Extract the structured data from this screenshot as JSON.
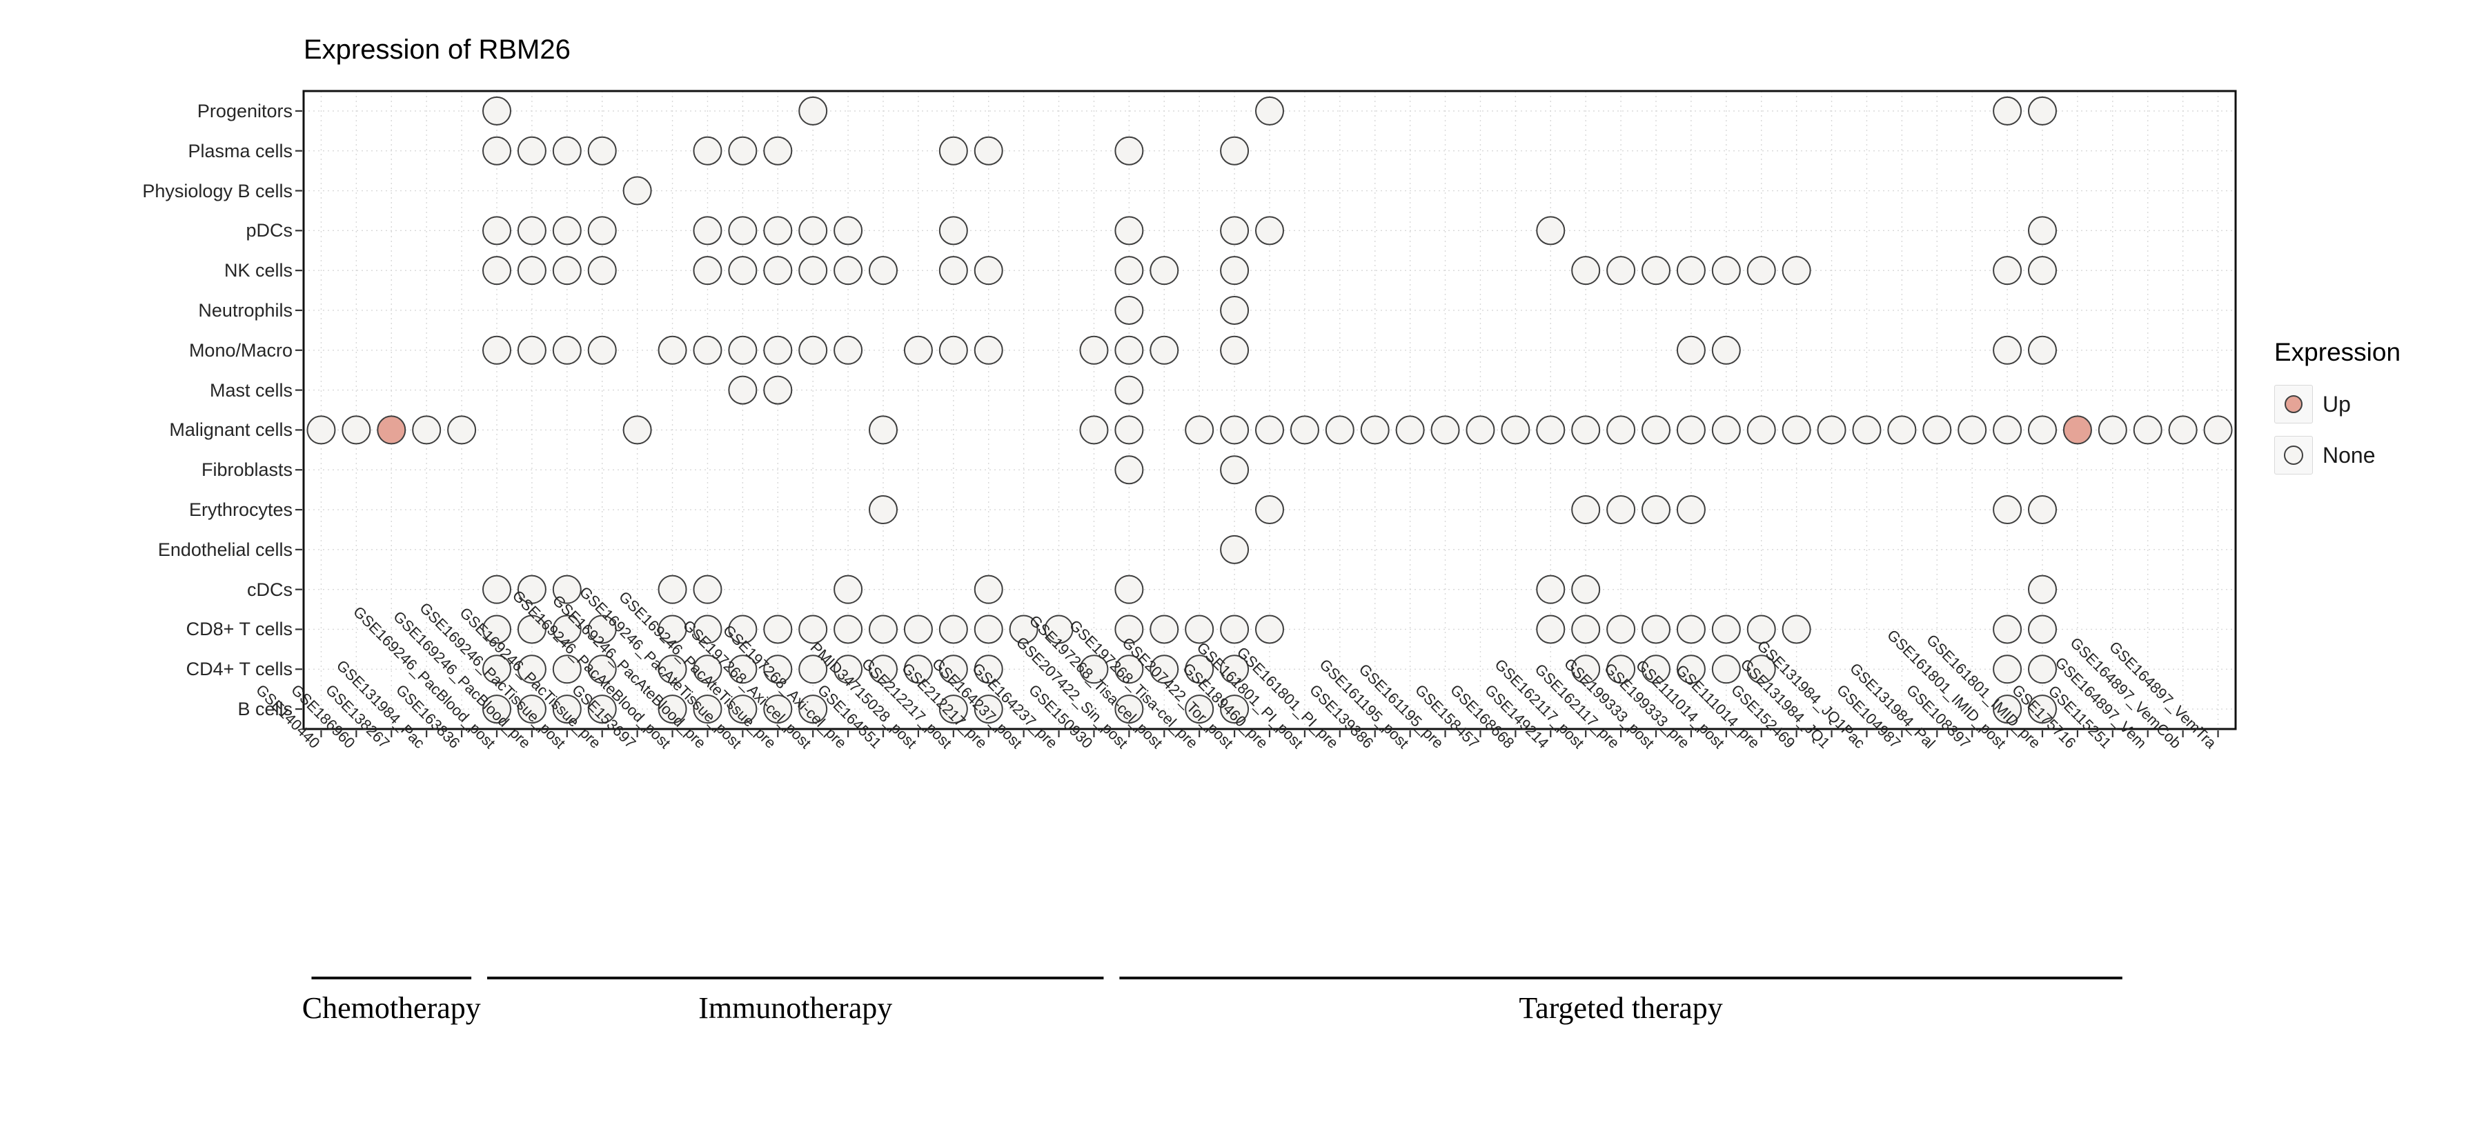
{
  "title": "Expression of RBM26",
  "legend": {
    "title": "Expression",
    "items": [
      {
        "label": "Up",
        "color": "#e5a497"
      },
      {
        "label": "None",
        "color": "#f5f4f2"
      }
    ]
  },
  "chart_data": {
    "type": "heatmap",
    "subtype": "dot-matrix",
    "title": "Expression of RBM26",
    "legend_title": "Expression",
    "legend_position": "right",
    "legend_values": [
      "Up",
      "None"
    ],
    "x_label_rotation": 45,
    "grid": "dotted",
    "dot_colors": {
      "up": "#e5a497",
      "none": "#f5f4f2"
    },
    "rows": [
      "Progenitors",
      "Plasma cells",
      "Physiology B cells",
      "pDCs",
      "NK cells",
      "Neutrophils",
      "Mono/Macro",
      "Mast cells",
      "Malignant cells",
      "Fibroblasts",
      "Erythrocytes",
      "Endothelial cells",
      "cDCs",
      "CD8+ T cells",
      "CD4+ T cells",
      "B cells"
    ],
    "columns": [
      "GSE140440",
      "GSE186960",
      "GSE138267",
      "GSE131984_Pac",
      "GSE163836",
      "GSE169246_PacBlood_post",
      "GSE169246_PacBlood_pre",
      "GSE169246_PacTissue_post",
      "GSE169246_PacTissue_pre",
      "GSE153697",
      "GSE169246_PacAteBlood_post",
      "GSE169246_PacAteBlood_pre",
      "GSE169246_PacAteTissue_post",
      "GSE169246_PacAteTissue_pre",
      "GSE197268_Axi-cel_post",
      "GSE197268_Axi-cel_pre",
      "GSE164551",
      "PMID34715028_post",
      "GSE212217_post",
      "GSE212217_pre",
      "GSE164237_post",
      "GSE164237_pre",
      "GSE150930",
      "GSE207422_Sin_post",
      "GSE197268_Tisa-cel_post",
      "GSE197268_Tisa-cel_pre",
      "GSE207422_Tor_post",
      "GSE189460_pre",
      "GSE161801_PI_post",
      "GSE161801_PI_pre",
      "GSE139386",
      "GSE161195_post",
      "GSE161195_pre",
      "GSE158457",
      "GSE168668",
      "GSE149214",
      "GSE162117_post",
      "GSE162117_pre",
      "GSE199333_post",
      "GSE199333_pre",
      "GSE111014_post",
      "GSE111014_pre",
      "GSE152469",
      "GSE131984_JQ1",
      "GSE131984_JQ1Pac",
      "GSE104987",
      "GSE131984_Pal",
      "GSE108397",
      "GSE161801_IMID_post",
      "GSE161801_IMID_pre",
      "GSE175716",
      "GSE115251",
      "GSE164897_Vem",
      "GSE164897_VemCob",
      "GSE164897_VemTra"
    ],
    "groups": [
      {
        "label": "Chemotherapy",
        "start": 1,
        "end": 5
      },
      {
        "label": "Immunotherapy",
        "start": 6,
        "end": 23
      },
      {
        "label": "Targeted therapy",
        "start": 24,
        "end": 52
      }
    ],
    "dots": {
      "Progenitors": {
        "none": [
          6,
          15,
          28,
          49,
          50
        ],
        "up": []
      },
      "Plasma cells": {
        "none": [
          6,
          7,
          8,
          9,
          12,
          13,
          14,
          19,
          20,
          24,
          27
        ],
        "up": []
      },
      "Physiology B cells": {
        "none": [
          10
        ],
        "up": []
      },
      "pDCs": {
        "none": [
          6,
          7,
          8,
          9,
          12,
          13,
          14,
          15,
          16,
          19,
          24,
          27,
          28,
          36,
          50
        ],
        "up": []
      },
      "NK cells": {
        "none": [
          6,
          7,
          8,
          9,
          12,
          13,
          14,
          15,
          16,
          17,
          19,
          20,
          24,
          25,
          27,
          37,
          38,
          39,
          40,
          41,
          42,
          43,
          49,
          50
        ],
        "up": []
      },
      "Neutrophils": {
        "none": [
          24,
          27
        ],
        "up": []
      },
      "Mono/Macro": {
        "none": [
          6,
          7,
          8,
          9,
          11,
          12,
          13,
          14,
          15,
          16,
          18,
          19,
          20,
          23,
          24,
          25,
          27,
          40,
          41,
          49,
          50
        ],
        "up": []
      },
      "Mast cells": {
        "none": [
          13,
          14,
          24
        ],
        "up": []
      },
      "Malignant cells": {
        "none": [
          1,
          2,
          4,
          5,
          10,
          17,
          23,
          24,
          26,
          27,
          28,
          29,
          30,
          31,
          32,
          33,
          34,
          35,
          36,
          37,
          38,
          39,
          40,
          41,
          42,
          43,
          44,
          45,
          46,
          47,
          48,
          49,
          50,
          52,
          53,
          54,
          55
        ],
        "up": [
          3,
          51
        ]
      },
      "Fibroblasts": {
        "none": [
          24,
          27
        ],
        "up": []
      },
      "Erythrocytes": {
        "none": [
          17,
          28,
          37,
          38,
          39,
          40,
          49,
          50
        ],
        "up": []
      },
      "Endothelial cells": {
        "none": [
          27
        ],
        "up": []
      },
      "cDCs": {
        "none": [
          6,
          7,
          8,
          11,
          12,
          16,
          20,
          24,
          36,
          37,
          50
        ],
        "up": []
      },
      "CD8+ T cells": {
        "none": [
          6,
          7,
          8,
          9,
          11,
          12,
          13,
          14,
          15,
          16,
          17,
          18,
          19,
          20,
          21,
          22,
          24,
          25,
          26,
          27,
          28,
          36,
          37,
          38,
          39,
          40,
          41,
          42,
          43,
          49,
          50
        ],
        "up": []
      },
      "CD4+ T cells": {
        "none": [
          6,
          7,
          8,
          9,
          11,
          12,
          13,
          14,
          15,
          16,
          17,
          18,
          19,
          20,
          23,
          24,
          25,
          26,
          27,
          37,
          38,
          39,
          40,
          41,
          42,
          49,
          50
        ],
        "up": []
      },
      "B cells": {
        "none": [
          6,
          7,
          8,
          9,
          11,
          12,
          13,
          14,
          15,
          19,
          20,
          24,
          26,
          27,
          49,
          50
        ],
        "up": []
      }
    }
  }
}
